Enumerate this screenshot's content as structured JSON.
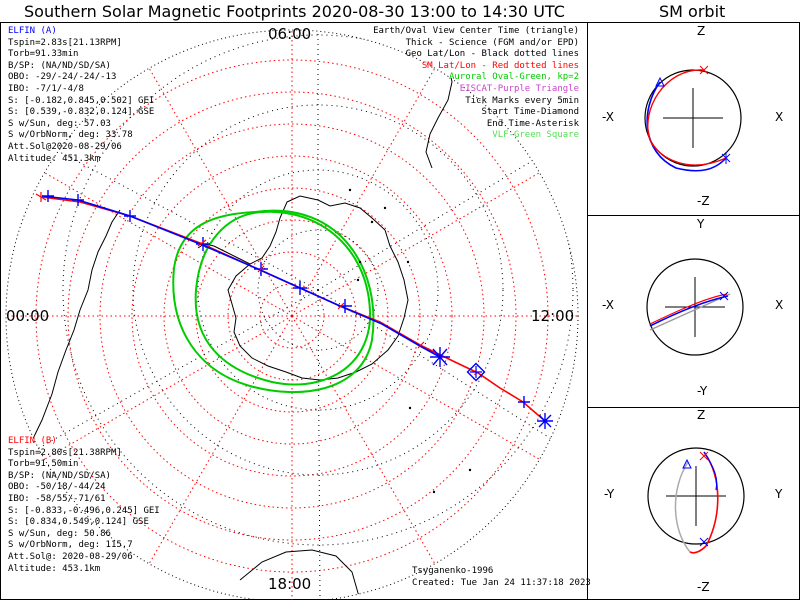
{
  "title": "Southern Solar Magnetic Footprints 2020-08-30 13:00 to 14:30 UTC",
  "sm_orbit_title": "SM orbit",
  "polar_plot": {
    "mlt_labels": {
      "top": "06:00",
      "right": "12:00",
      "bottom": "18:00",
      "left": "00:00"
    },
    "legend": [
      {
        "text": "Earth/Oval View Center Time (triangle)",
        "color": "#000000"
      },
      {
        "text": "Thick - Science (FGM and/or EPD)",
        "color": "#000000"
      },
      {
        "text": "Geo Lat/Lon - Black dotted lines",
        "color": "#000000"
      },
      {
        "text": "SM Lat/Lon - Red dotted lines",
        "color": "#ff0000"
      },
      {
        "text": "Auroral Oval-Green, kp=2",
        "color": "#00cc00"
      },
      {
        "text": "EISCAT-Purple Triangle",
        "color": "#cc44cc"
      },
      {
        "text": "Tick Marks every 5min",
        "color": "#000000"
      },
      {
        "text": "Start Time-Diamond",
        "color": "#000000"
      },
      {
        "text": "End Time-Asterisk",
        "color": "#000000"
      },
      {
        "text": "VLF-Green Square",
        "color": "#55dd55"
      }
    ],
    "elfin_a": {
      "name": "ELFIN (A)",
      "lines": [
        "Tspin=2.83s[21.13RPM]",
        "Torb=91.33min",
        "B/SP: (NA/ND/SD/SA)",
        "OBO: -29/-24/-24/-13",
        "IBO: -7/1/-4/8",
        "S: [-0.182,0.845,0.502] GEI",
        "S: [0.539,-0.832,0.124] GSE",
        "S w/Sun, deg: 57.03",
        "S w/OrbNorm, deg: 33.78",
        "Att.Sol@2020-08-29/06",
        "Altitude: 451.3km"
      ]
    },
    "elfin_b": {
      "name": "ELFIN (B)",
      "lines": [
        "Tspin=2.80s[21.38RPM]",
        "Torb=91.50min",
        "B/SP: (NA/ND/SD/SA)",
        "OBO: -50/18/-44/24",
        "IBO: -58/55/-71/61",
        "S: [-0.833,-0.496,0.245] GEI",
        "S: [0.834,0.549,0.124] GSE",
        "S w/Sun, deg: 50.86",
        "S w/OrbNorm, deg: 115.7",
        "Att.Sol@: 2020-08-29/06",
        "Altitude: 453.1km"
      ]
    },
    "credit": "Tsyganenko-1996",
    "created": "Created: Tue Jan 24 11:37:18 2023"
  },
  "sm_orbit": {
    "panels": [
      {
        "top": "Z",
        "bottom": "-Z",
        "left": "-X",
        "right": "X"
      },
      {
        "top": "Y",
        "bottom": "-Y",
        "left": "-X",
        "right": "X"
      },
      {
        "top": "Z",
        "bottom": "-Z",
        "left": "-Y",
        "right": "Y"
      }
    ]
  },
  "colors": {
    "elfin_a": "#0000ff",
    "elfin_b": "#ff0000",
    "oval": "#00cc00",
    "grid": "#ff0000"
  }
}
